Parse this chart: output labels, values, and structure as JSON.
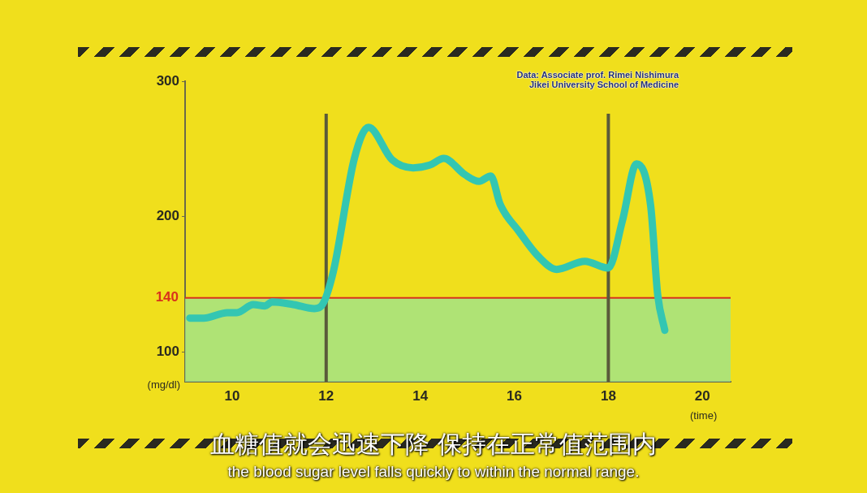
{
  "chart_data": {
    "type": "line",
    "xlabel": "(time)",
    "ylabel": "(mg/dl)",
    "x": [
      9.1,
      9.4,
      9.9,
      10.1,
      10.45,
      10.7,
      10.85,
      11.3,
      11.75,
      11.9,
      12.15,
      12.6,
      12.9,
      13.4,
      13.85,
      14.2,
      14.5,
      14.95,
      15.25,
      15.5,
      15.7,
      16.1,
      16.5,
      16.9,
      17.5,
      18.0,
      18.3,
      18.6,
      18.9,
      19.05,
      19.2
    ],
    "series": [
      {
        "color": "#33c6b2",
        "values": [
          125,
          125,
          129,
          129,
          135,
          134,
          137,
          135,
          132,
          134,
          159,
          243,
          266,
          242,
          236,
          238,
          243,
          231,
          226,
          230,
          209,
          189,
          171,
          161,
          167,
          162,
          197,
          239,
          208,
          142,
          116
        ]
      }
    ],
    "xlim": [
      9,
      20.6
    ],
    "xticks": [
      10,
      12,
      14,
      16,
      18,
      20
    ],
    "ylim": [
      78,
      300
    ],
    "yticks": [
      100,
      200,
      300
    ],
    "grid": false,
    "legend": false,
    "marker": "none",
    "line_style": "solid",
    "ref_lines": [
      {
        "axis": "y",
        "value": 140,
        "label": "140",
        "color": "#d8321c"
      },
      {
        "axis": "x",
        "value": 12,
        "color": "#5a5a3a"
      },
      {
        "axis": "x",
        "value": 18,
        "color": "#5a5a3a"
      }
    ],
    "bands": [
      {
        "axis": "y",
        "from": 78,
        "to": 140,
        "color": "#9fe48c"
      }
    ],
    "annotations": [
      "Data: Associate prof. Rimei Nishimura\nJikei University School of Medicine",
      "血糖值就会迅速下降 保持在正常值范围内",
      "the blood sugar level falls quickly to within the normal range."
    ]
  }
}
